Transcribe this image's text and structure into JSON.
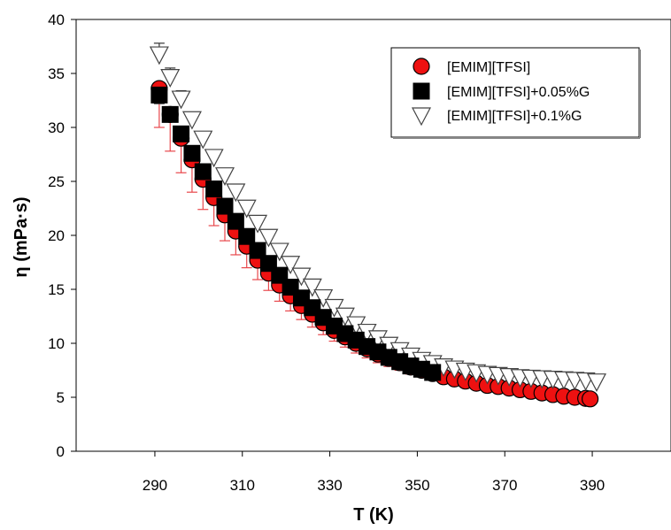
{
  "chart_data": {
    "type": "scatter",
    "xlabel": "T (K)",
    "ylabel": "η (mPa·s)",
    "xlim": [
      272,
      408
    ],
    "ylim": [
      0,
      40
    ],
    "xticks": [
      290,
      310,
      330,
      350,
      370,
      390
    ],
    "yticks": [
      0,
      5,
      10,
      15,
      20,
      25,
      30,
      35,
      40
    ],
    "grid": false,
    "legend_position": "top-right",
    "series": [
      {
        "name": "[EMIM][TFSI]",
        "marker": "circle",
        "color": "#ee1111",
        "error_bar_color": "#e8474b",
        "x": [
          291,
          293.5,
          296,
          298.5,
          301,
          303.5,
          306,
          308.5,
          311,
          313.5,
          316,
          318.5,
          321,
          323.5,
          326,
          328.5,
          331,
          333.5,
          336,
          338.5,
          341,
          343.5,
          346,
          348.5,
          351,
          353.5,
          356,
          358.5,
          361,
          363.5,
          366,
          368.5,
          371,
          373.5,
          376,
          378.5,
          381,
          383.5,
          386,
          388.5,
          389.5
        ],
        "y": [
          33.6,
          31.2,
          29.0,
          27.0,
          25.2,
          23.5,
          21.9,
          20.4,
          19.0,
          17.7,
          16.5,
          15.4,
          14.4,
          13.5,
          12.7,
          11.9,
          11.2,
          10.6,
          10.0,
          9.5,
          9.0,
          8.6,
          8.2,
          7.8,
          7.5,
          7.2,
          6.9,
          6.7,
          6.5,
          6.3,
          6.1,
          6.0,
          5.85,
          5.7,
          5.55,
          5.4,
          5.25,
          5.1,
          5.0,
          4.9,
          4.85
        ],
        "error_minus": [
          3.6,
          3.4,
          3.2,
          3.0,
          2.8,
          2.6,
          2.4,
          2.2,
          2.0,
          1.8,
          1.6,
          1.5,
          1.4,
          1.3,
          1.2,
          1.1,
          1.0,
          0.95,
          0.9,
          0.85,
          0.8,
          0.75,
          0.7,
          0.65,
          0.6,
          0.55,
          0.5,
          0.45,
          0.4,
          0.35,
          0.3,
          0.3,
          0.25,
          0.25,
          0.2,
          0.2,
          0.2,
          0.15,
          0.15,
          0.1,
          0.1
        ]
      },
      {
        "name": "[EMIM][TFSI]+0.05%G",
        "marker": "square",
        "color": "#000000",
        "error_bar_color": "#333333",
        "x": [
          291,
          293.5,
          296,
          298.5,
          301,
          303.5,
          306,
          308.5,
          311,
          313.5,
          316,
          318.5,
          321,
          323.5,
          326,
          328.5,
          331,
          333.5,
          336,
          338.5,
          341,
          343.5,
          346,
          348.5,
          351,
          353.5
        ],
        "y": [
          33.0,
          31.2,
          29.4,
          27.6,
          25.9,
          24.3,
          22.7,
          21.3,
          19.9,
          18.6,
          17.4,
          16.3,
          15.2,
          14.2,
          13.3,
          12.4,
          11.6,
          10.9,
          10.3,
          9.7,
          9.2,
          8.7,
          8.3,
          7.9,
          7.6,
          7.3
        ],
        "error_minus": [
          0.8,
          0.7,
          0.6,
          0.5,
          0.5,
          0.4,
          0.4,
          0.3,
          0.3,
          0.3,
          0.3,
          0.2,
          0.2,
          0.2,
          0.2,
          0.2,
          0.2,
          0.2,
          0.2,
          0.2,
          0.2,
          0.2,
          0.2,
          0.2,
          0.2,
          0.2
        ]
      },
      {
        "name": "[EMIM][TFSI]+0.1%G",
        "marker": "triangle-down",
        "color": "#444444",
        "error_bar_color": "#333333",
        "x": [
          291,
          293.5,
          296,
          298.5,
          301,
          303.5,
          306,
          308.5,
          311,
          313.5,
          316,
          318.5,
          321,
          323.5,
          326,
          328.5,
          331,
          333.5,
          336,
          338.5,
          341,
          343.5,
          346,
          348.5,
          351,
          353.5,
          356,
          358.5,
          361,
          363.5,
          366,
          368.5,
          371,
          373.5,
          376,
          378.5,
          381,
          383.5,
          386,
          388.5,
          391
        ],
        "y": [
          36.8,
          34.7,
          32.7,
          30.8,
          29.0,
          27.3,
          25.6,
          24.1,
          22.6,
          21.2,
          19.9,
          18.6,
          17.4,
          16.3,
          15.3,
          14.3,
          13.4,
          12.6,
          11.8,
          11.1,
          10.5,
          9.9,
          9.4,
          8.9,
          8.5,
          8.2,
          7.9,
          7.7,
          7.5,
          7.35,
          7.2,
          7.1,
          7.0,
          6.9,
          6.85,
          6.8,
          6.75,
          6.7,
          6.65,
          6.6,
          6.5
        ],
        "error_plus": [
          1.0,
          0.8,
          0.7,
          0.6,
          0.5,
          0.4,
          0.3,
          0.3,
          0.2,
          0.2,
          0.2,
          0.2,
          0.2,
          0.2,
          0.2,
          0.2,
          0.2,
          0.2,
          0.2,
          0.2,
          0.2,
          0.2,
          0.2,
          0.2,
          0.2,
          0.2,
          0.2,
          0.2,
          0.2,
          0.2,
          0.2,
          0.2,
          0.2,
          0.2,
          0.2,
          0.2,
          0.2,
          0.2,
          0.2,
          0.2,
          0.2
        ]
      }
    ]
  }
}
